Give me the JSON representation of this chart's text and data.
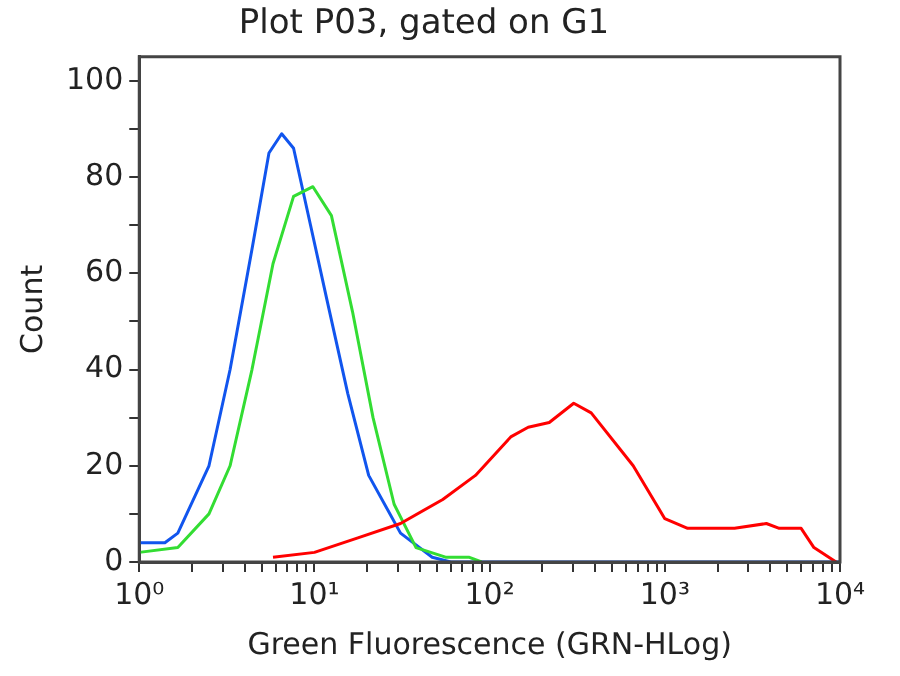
{
  "chart_data": {
    "type": "line",
    "title": "Plot P03, gated on G1",
    "xlabel": "Green Fluorescence (GRN-HLog)",
    "ylabel": "Count",
    "log": "x",
    "grid": false,
    "legend": false,
    "marker": "none",
    "line_style": "solid",
    "xlim": [
      1,
      10000
    ],
    "ylim": [
      0,
      105
    ],
    "xticks": [
      {
        "value": 1,
        "label": "10⁰"
      },
      {
        "value": 2,
        "label": null
      },
      {
        "value": 3,
        "label": null
      },
      {
        "value": 4,
        "label": null
      },
      {
        "value": 5,
        "label": null
      },
      {
        "value": 6,
        "label": null
      },
      {
        "value": 7,
        "label": null
      },
      {
        "value": 8,
        "label": null
      },
      {
        "value": 9,
        "label": null
      },
      {
        "value": 10,
        "label": "10¹"
      },
      {
        "value": 20,
        "label": null
      },
      {
        "value": 30,
        "label": null
      },
      {
        "value": 40,
        "label": null
      },
      {
        "value": 50,
        "label": null
      },
      {
        "value": 60,
        "label": null
      },
      {
        "value": 70,
        "label": null
      },
      {
        "value": 80,
        "label": null
      },
      {
        "value": 90,
        "label": null
      },
      {
        "value": 100,
        "label": "10²"
      },
      {
        "value": 200,
        "label": null
      },
      {
        "value": 300,
        "label": null
      },
      {
        "value": 400,
        "label": null
      },
      {
        "value": 500,
        "label": null
      },
      {
        "value": 600,
        "label": null
      },
      {
        "value": 700,
        "label": null
      },
      {
        "value": 800,
        "label": null
      },
      {
        "value": 900,
        "label": null
      },
      {
        "value": 1000,
        "label": "10³"
      },
      {
        "value": 2000,
        "label": null
      },
      {
        "value": 3000,
        "label": null
      },
      {
        "value": 4000,
        "label": null
      },
      {
        "value": 5000,
        "label": null
      },
      {
        "value": 6000,
        "label": null
      },
      {
        "value": 7000,
        "label": null
      },
      {
        "value": 8000,
        "label": null
      },
      {
        "value": 9000,
        "label": null
      },
      {
        "value": 10000,
        "label": "10⁴"
      }
    ],
    "yticks": [
      0,
      {
        "value": 10,
        "label": null
      },
      20,
      {
        "value": 30,
        "label": null
      },
      40,
      {
        "value": 50,
        "label": null
      },
      60,
      {
        "value": 70,
        "label": null
      },
      80,
      {
        "value": 90,
        "label": null
      },
      100
    ],
    "series": [
      {
        "color": "#ff0000",
        "x": [
          5.8,
          10,
          17.7,
          31,
          54,
          83,
          132,
          166,
          219,
          302,
          380,
          660,
          1000,
          1350,
          1550,
          2500,
          3800,
          4500,
          6000,
          7100,
          9500
        ],
        "values": [
          1,
          2,
          5,
          8,
          13,
          18,
          26,
          28,
          29,
          33,
          31,
          20,
          9,
          7,
          7,
          7,
          8,
          7,
          7,
          3,
          0
        ]
      },
      {
        "color": "#33dd33",
        "x": [
          1,
          1.66,
          2.5,
          3.3,
          4.4,
          5.8,
          7.6,
          9.8,
          12.5,
          16.5,
          21.6,
          28.5,
          38,
          56,
          76,
          90
        ],
        "values": [
          2,
          3,
          10,
          20,
          40,
          62,
          76,
          78,
          72,
          52,
          30,
          12,
          3,
          1,
          1,
          0
        ]
      },
      {
        "color": "#1155ee",
        "x": [
          1,
          1.4,
          1.66,
          2.5,
          3.3,
          4.4,
          5.5,
          6.5,
          7.6,
          9.5,
          11.7,
          15.5,
          20.4,
          31,
          47,
          60,
          10000
        ],
        "values": [
          4,
          4,
          6,
          20,
          40,
          65,
          85,
          89,
          86,
          70,
          55,
          35,
          18,
          6,
          1,
          0,
          0
        ]
      }
    ]
  }
}
